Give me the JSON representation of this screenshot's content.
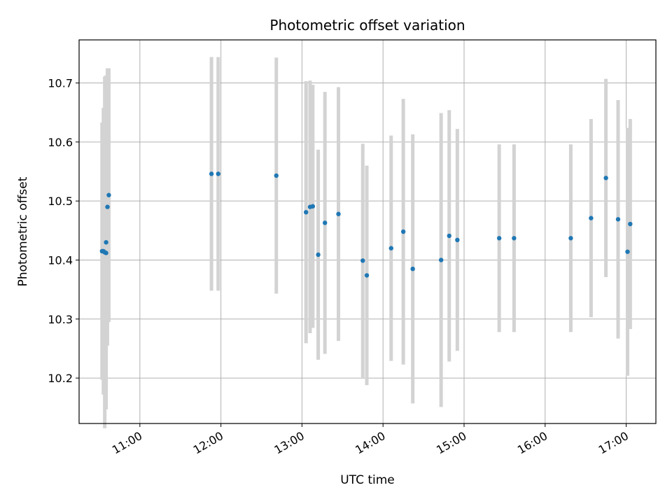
{
  "chart_data": {
    "type": "scatter",
    "title": "Photometric offset variation",
    "xlabel": "UTC time",
    "ylabel": "Photometric offset",
    "xlim": [
      "10:15",
      "17:22"
    ],
    "ylim": [
      10.123,
      10.773
    ],
    "grid": true,
    "x_ticks": [
      "11:00",
      "12:00",
      "13:00",
      "14:00",
      "15:00",
      "16:00",
      "17:00"
    ],
    "y_ticks": [
      10.2,
      10.3,
      10.4,
      10.5,
      10.6,
      10.7
    ],
    "y_tick_labels": [
      "10.2",
      "10.3",
      "10.4",
      "10.5",
      "10.6",
      "10.7"
    ],
    "marker_color": "#1f77b4",
    "errorbar_color": "#d3d3d3",
    "points": [
      {
        "x": "10:32",
        "y": 10.415,
        "err": 0.218
      },
      {
        "x": "10:33",
        "y": 10.415,
        "err": 0.243
      },
      {
        "x": "10:34",
        "y": 10.413,
        "err": 0.298
      },
      {
        "x": "10:35",
        "y": 10.43,
        "err": 0.283
      },
      {
        "x": "10:36",
        "y": 10.49,
        "err": 0.235
      },
      {
        "x": "10:37",
        "y": 10.51,
        "err": 0.215
      },
      {
        "x": "10:35",
        "y": 10.412,
        "err": 0.237
      },
      {
        "x": "11:53",
        "y": 10.546,
        "err": 0.198
      },
      {
        "x": "11:58",
        "y": 10.546,
        "err": 0.198
      },
      {
        "x": "12:41",
        "y": 10.543,
        "err": 0.2
      },
      {
        "x": "13:03",
        "y": 10.481,
        "err": 0.222
      },
      {
        "x": "13:06",
        "y": 10.49,
        "err": 0.214
      },
      {
        "x": "13:08",
        "y": 10.491,
        "err": 0.206
      },
      {
        "x": "13:12",
        "y": 10.409,
        "err": 0.178
      },
      {
        "x": "13:17",
        "y": 10.463,
        "err": 0.222
      },
      {
        "x": "13:27",
        "y": 10.478,
        "err": 0.215
      },
      {
        "x": "13:45",
        "y": 10.399,
        "err": 0.198
      },
      {
        "x": "13:48",
        "y": 10.374,
        "err": 0.186
      },
      {
        "x": "14:06",
        "y": 10.42,
        "err": 0.191
      },
      {
        "x": "14:15",
        "y": 10.448,
        "err": 0.225
      },
      {
        "x": "14:22",
        "y": 10.385,
        "err": 0.228
      },
      {
        "x": "14:43",
        "y": 10.4,
        "err": 0.249
      },
      {
        "x": "14:49",
        "y": 10.441,
        "err": 0.213
      },
      {
        "x": "14:55",
        "y": 10.434,
        "err": 0.188
      },
      {
        "x": "15:26",
        "y": 10.437,
        "err": 0.159
      },
      {
        "x": "15:37",
        "y": 10.437,
        "err": 0.159
      },
      {
        "x": "16:19",
        "y": 10.437,
        "err": 0.159
      },
      {
        "x": "16:34",
        "y": 10.471,
        "err": 0.168
      },
      {
        "x": "16:45",
        "y": 10.539,
        "err": 0.168
      },
      {
        "x": "16:54",
        "y": 10.469,
        "err": 0.202
      },
      {
        "x": "17:01",
        "y": 10.414,
        "err": 0.21
      },
      {
        "x": "17:03",
        "y": 10.461,
        "err": 0.178
      }
    ]
  }
}
